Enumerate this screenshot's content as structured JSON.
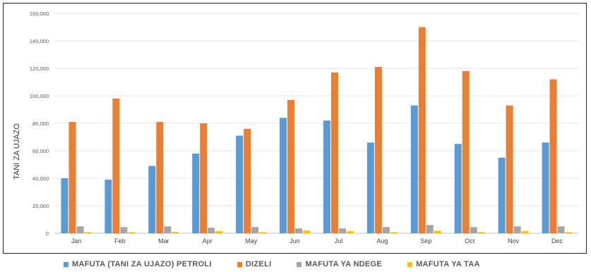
{
  "chart_data": {
    "type": "bar",
    "ylabel": "TANI ZA UJAZO",
    "ylim": [
      0,
      160000
    ],
    "yticks": [
      "0",
      "20,000",
      "40,000",
      "60,000",
      "80,000",
      "100,000",
      "120,000",
      "140,000",
      "160,000"
    ],
    "categories": [
      "Jan",
      "Feb",
      "Mar",
      "Apr",
      "May",
      "Jun",
      "Jul",
      "Aug",
      "Sep",
      "Oct",
      "Nov",
      "Dec"
    ],
    "series": [
      {
        "name": "MAFUTA (TANI ZA UJAZO) PETROLI",
        "color": "#5B9BD5",
        "values": [
          40000,
          39000,
          49000,
          58000,
          71000,
          84000,
          82000,
          66000,
          93000,
          65000,
          55000,
          66000
        ]
      },
      {
        "name": "DIZELI",
        "color": "#ED7D31",
        "values": [
          81000,
          98000,
          81000,
          80000,
          76000,
          97000,
          117000,
          121000,
          150000,
          118000,
          93000,
          112000
        ]
      },
      {
        "name": "MAFUTA YA NDEGE",
        "color": "#A5A5A5",
        "values": [
          5000,
          4500,
          5000,
          4000,
          4500,
          3500,
          3500,
          4500,
          6000,
          4500,
          5000,
          5000
        ]
      },
      {
        "name": "MAFUTA YA TAA",
        "color": "#FFC000",
        "values": [
          800,
          800,
          1000,
          1500,
          800,
          2000,
          1500,
          800,
          1800,
          900,
          1500,
          800
        ]
      }
    ],
    "grid": true,
    "legend": "bottom"
  }
}
